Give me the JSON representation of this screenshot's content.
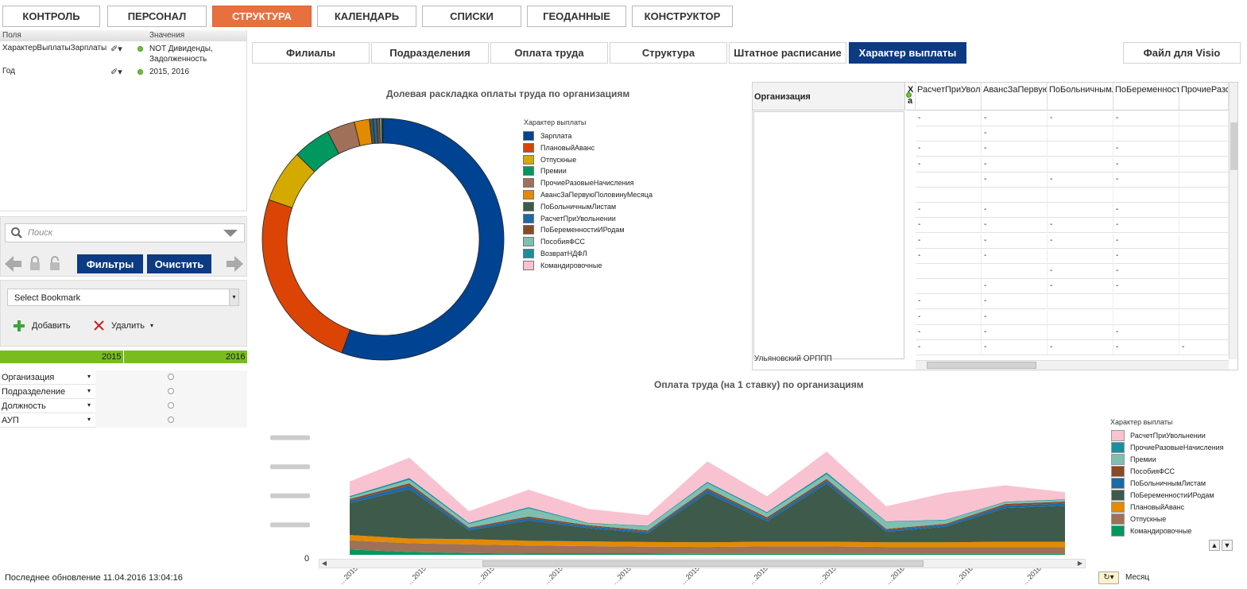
{
  "topnav": {
    "items": [
      "КОНТРОЛЬ",
      "ПЕРСОНАЛ",
      "СТРУКТУРА",
      "КАЛЕНДАРЬ",
      "СПИСКИ",
      "ГЕОДАННЫЕ",
      "КОНСТРУКТОР"
    ],
    "active_index": 2
  },
  "fields_panel": {
    "col_fields": "Поля",
    "col_values": "Значения",
    "rows": [
      {
        "name": "ХарактерВыплатыЗарплаты",
        "value": "NOT Дивиденды, Задолженность"
      },
      {
        "name": "Год",
        "value": "2015, 2016"
      }
    ]
  },
  "search": {
    "placeholder": "Поиск",
    "filters_label": "Фильтры",
    "clear_label": "Очистить"
  },
  "bookmarks": {
    "select_label": "Select Bookmark",
    "add_label": "Добавить",
    "delete_label": "Удалить"
  },
  "year_bar": {
    "year_a": "2015",
    "year_b": "2016"
  },
  "dimensions": [
    "Организация",
    "Подразделение",
    "Должность",
    "АУП"
  ],
  "footer": {
    "last_update": "Последнее обновление 11.04.2016 13:04:16"
  },
  "tabs": {
    "items": [
      "Филиалы",
      "Подразделения",
      "Оплата труда",
      "Структура",
      "Штатное расписание",
      "Характер выплаты"
    ],
    "active_index": 5,
    "visio_label": "Файл для Visio"
  },
  "donut": {
    "title": "Долевая раскладка оплаты труда по организациям",
    "legend_title": "Характер выплаты"
  },
  "table": {
    "org_header": "Организация",
    "xa_header": "Х а",
    "columns": [
      "РасчетПриУвольнении",
      "АвансЗаПервуюПоловинуМес...",
      "ПоБольничнымЛистам",
      "ПоБеременностиИРодам",
      "ПрочиеРазовыеНачис..."
    ],
    "partial_org_label": "Ульяновский ОРППП",
    "colors": {
      "header_bg": "#f3f3f3"
    }
  },
  "area": {
    "title": "Оплата труда (на 1 ставку) по организациям",
    "legend_title": "Характер выплаты",
    "zero_label": "0",
    "month_label": "Месяц"
  },
  "colors": {
    "nav_active": "#e8703f",
    "tab_active": "#0c3a83",
    "year_bar": "#78bc1e",
    "status_green": "#6cc038"
  },
  "chart_data": [
    {
      "type": "pie",
      "title": "Долевая раскладка оплаты труда по организациям",
      "legend_title": "Характер выплаты",
      "slices": [
        {
          "name": "Зарплата",
          "value": 55.0,
          "color": "#004392"
        },
        {
          "name": "ПлановыйАванс",
          "value": 24.5,
          "color": "#dc4405"
        },
        {
          "name": "Отпускные",
          "value": 7.0,
          "color": "#d4aa00"
        },
        {
          "name": "Премии",
          "value": 5.0,
          "color": "#00985f"
        },
        {
          "name": "ПрочиеРазовыеНачисления",
          "value": 3.7,
          "color": "#a07058"
        },
        {
          "name": "АвансЗаПервуюПоловинуМесяца",
          "value": 2.0,
          "color": "#e48a00"
        },
        {
          "name": "ПоБольничнымЛистам",
          "value": 0.5,
          "color": "#3d5a4b"
        },
        {
          "name": "РасчетПриУвольнении",
          "value": 0.45,
          "color": "#1a6aa8"
        },
        {
          "name": "ПоБеременностиИРодам",
          "value": 0.4,
          "color": "#8b4a26"
        },
        {
          "name": "ПособияФСС",
          "value": 0.25,
          "color": "#7fbfb0"
        },
        {
          "name": "ВозвратНДФЛ",
          "value": 0.15,
          "color": "#1a8fa0"
        },
        {
          "name": "Командировочные",
          "value": 0.05,
          "color": "#f9c2d0"
        }
      ]
    },
    {
      "type": "area",
      "title": "Оплата труда (на 1 ставку) по организациям",
      "legend_title": "Характер выплаты",
      "ylim": [
        0,
        25000000
      ],
      "points": 13,
      "series": [
        {
          "name": "Командировочные",
          "color": "#00985f",
          "values": [
            900000,
            500000,
            300000,
            200000,
            200000,
            200000,
            150000,
            150000,
            150000,
            150000,
            150000,
            150000,
            150000
          ]
        },
        {
          "name": "Отпускные",
          "color": "#a07058",
          "values": [
            1600000,
            1500000,
            1500000,
            1400000,
            1300000,
            1200000,
            1200000,
            1300000,
            1300000,
            1200000,
            1200000,
            1200000,
            1200000
          ]
        },
        {
          "name": "ПлановыйАванс",
          "color": "#e48a00",
          "values": [
            900000,
            800000,
            900000,
            800000,
            800000,
            800000,
            800000,
            800000,
            800000,
            800000,
            800000,
            900000,
            900000
          ]
        },
        {
          "name": "ПоБеременностиИРодам",
          "color": "#3d5a4b",
          "values": [
            5500000,
            8500000,
            1500000,
            3500000,
            2300000,
            1500000,
            8500000,
            3500000,
            10000000,
            1800000,
            2700000,
            5800000,
            6200000
          ]
        },
        {
          "name": "ПоБольничнымЛистам",
          "color": "#1a6aa8",
          "values": [
            400000,
            600000,
            300000,
            400000,
            300000,
            300000,
            500000,
            400000,
            500000,
            300000,
            300000,
            400000,
            400000
          ]
        },
        {
          "name": "ПособияФСС",
          "color": "#8b4a26",
          "values": [
            300000,
            400000,
            200000,
            300000,
            200000,
            200000,
            300000,
            300000,
            300000,
            200000,
            200000,
            300000,
            300000
          ]
        },
        {
          "name": "Премии",
          "color": "#7fbfb0",
          "values": [
            300000,
            600000,
            600000,
            1400000,
            300000,
            700000,
            900000,
            700000,
            800000,
            1200000,
            600000,
            300000,
            300000
          ]
        },
        {
          "name": "ПрочиеРазовыеНачисления",
          "color": "#1a8fa0",
          "values": [
            200000,
            300000,
            200000,
            200000,
            100000,
            100000,
            200000,
            200000,
            300000,
            100000,
            100000,
            100000,
            100000
          ]
        },
        {
          "name": "РасчетПриУвольнении",
          "color": "#f9c2d0",
          "values": [
            2500000,
            3500000,
            2000000,
            3000000,
            2400000,
            1800000,
            3500000,
            2700000,
            3600000,
            2600000,
            4600000,
            2800000,
            1200000
          ]
        }
      ]
    }
  ]
}
